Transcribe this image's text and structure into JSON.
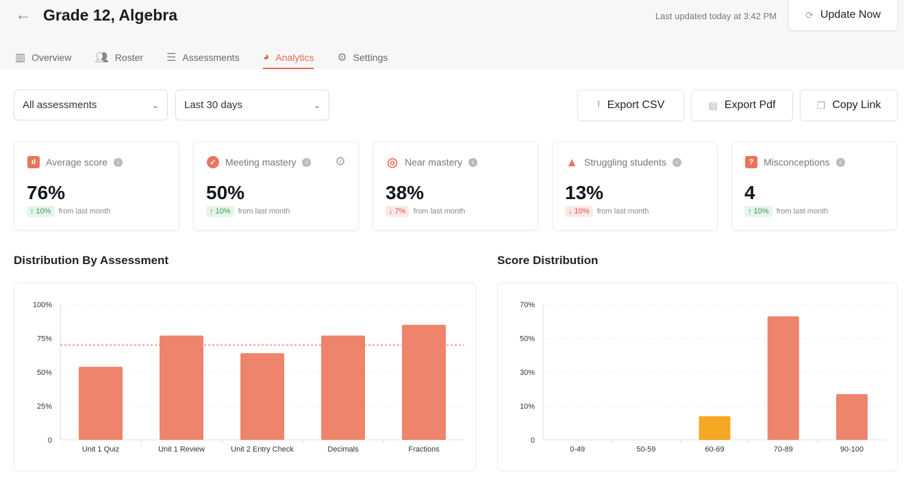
{
  "header": {
    "title": "Grade 12, Algebra",
    "last_updated": "Last updated today at 3:42 PM",
    "update_button": "Update Now"
  },
  "tabs": [
    {
      "label": "Overview",
      "icon": "bar-chart-icon"
    },
    {
      "label": "Roster",
      "icon": "users-icon"
    },
    {
      "label": "Assessments",
      "icon": "list-icon"
    },
    {
      "label": "Analytics",
      "icon": "pie-chart-icon",
      "active": true
    },
    {
      "label": "Settings",
      "icon": "gear-icon"
    }
  ],
  "filters": {
    "assessment": "All assessments",
    "range": "Last 30 days"
  },
  "actions": {
    "export_csv": "Export CSV",
    "export_pdf": "Export Pdf",
    "copy_link": "Copy Link"
  },
  "cards": [
    {
      "label": "Average score",
      "value": "76%",
      "delta": "↑ 10%",
      "trend": "up",
      "suffix": "from last month"
    },
    {
      "label": "Meeting mastery",
      "value": "50%",
      "delta": "↑ 10%",
      "trend": "up",
      "suffix": "from last month"
    },
    {
      "label": "Near mastery",
      "value": "38%",
      "delta": "↓ 7%",
      "trend": "down",
      "suffix": "from last month"
    },
    {
      "label": "Struggling students",
      "value": "13%",
      "delta": "↓ 10%",
      "trend": "down",
      "suffix": "from last month"
    },
    {
      "label": "Misconceptions",
      "value": "4",
      "delta": "↑ 10%",
      "trend": "up",
      "suffix": "from last month"
    }
  ],
  "colors": {
    "accent": "#e0694d",
    "bar": "#ee846b",
    "highlight": "#f5a623"
  },
  "chart_data": [
    {
      "type": "bar",
      "title": "Distribution By Assessment",
      "categories": [
        "Unit 1 Quiz",
        "Unit 1 Review",
        "Unit 2 Entry Check",
        "Decimals",
        "Fractions"
      ],
      "values": [
        54,
        77,
        64,
        77,
        85
      ],
      "target_line": 70,
      "yticks": [
        "0",
        "25%",
        "50%",
        "75%",
        "100%"
      ],
      "ylim": [
        0,
        100
      ],
      "grid": true
    },
    {
      "type": "bar",
      "title": "Score Distribution",
      "categories": [
        "0-49",
        "50-59",
        "60-69",
        "70-89",
        "90-100"
      ],
      "values": [
        0,
        0,
        7,
        63,
        17
      ],
      "highlight_index": 2,
      "yticks": [
        "0",
        "10%",
        "30%",
        "50%",
        "70%"
      ],
      "ytick_values": [
        0,
        10,
        30,
        50,
        70
      ],
      "ylim": [
        0,
        70
      ],
      "grid": true
    }
  ]
}
